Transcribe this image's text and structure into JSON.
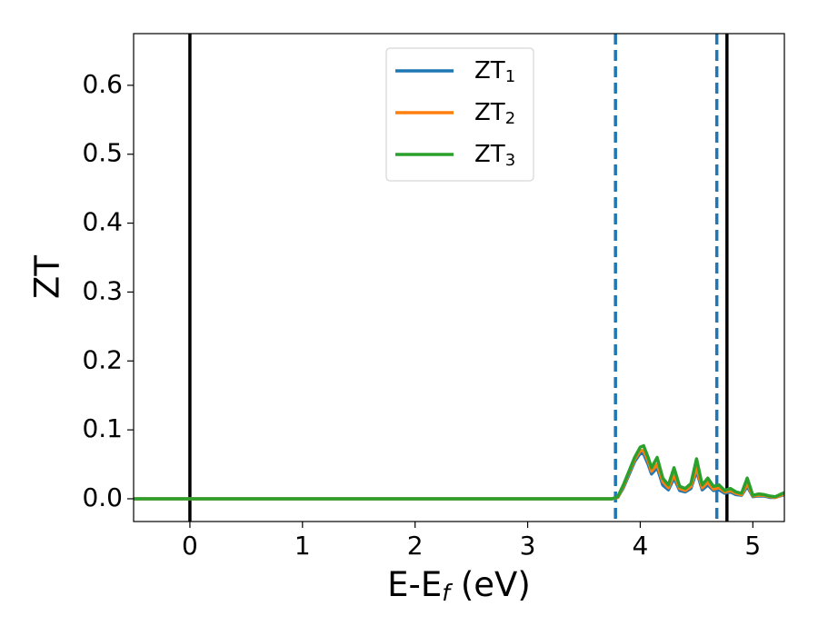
{
  "chart_data": {
    "type": "line",
    "ylabel": "ZT",
    "xlabel": [
      "E-E",
      "f",
      " (eV)"
    ],
    "xlim": [
      -0.5,
      5.28
    ],
    "ylim": [
      -0.033,
      0.675
    ],
    "xticks": [
      0,
      1,
      2,
      3,
      4,
      5
    ],
    "yticks": [
      {
        "value": 0,
        "label": "0.0"
      },
      0.1,
      0.2,
      0.3,
      0.4,
      0.5,
      0.6
    ],
    "legend": "upper center",
    "vlines": [
      {
        "x": 0,
        "color": "#000000",
        "style": "solid"
      },
      {
        "x": 4.77,
        "color": "#000000",
        "style": "solid"
      },
      {
        "x": 3.78,
        "color": "#1f77b4",
        "style": "dashed"
      },
      {
        "x": 4.68,
        "color": "#1f77b4",
        "style": "dashed"
      }
    ],
    "x": [
      -0.5,
      3.75,
      3.8,
      3.85,
      3.9,
      3.95,
      4.0,
      4.03,
      4.07,
      4.1,
      4.15,
      4.2,
      4.25,
      4.3,
      4.35,
      4.4,
      4.45,
      4.5,
      4.55,
      4.6,
      4.65,
      4.7,
      4.75,
      4.8,
      4.85,
      4.9,
      4.95,
      5.0,
      5.05,
      5.1,
      5.15,
      5.2,
      5.28
    ],
    "series": [
      {
        "name": [
          "ZT",
          "1"
        ],
        "color": "#1f77b4",
        "values": [
          0,
          0,
          0.002,
          0.016,
          0.035,
          0.054,
          0.066,
          0.065,
          0.05,
          0.036,
          0.045,
          0.02,
          0.013,
          0.03,
          0.012,
          0.01,
          0.015,
          0.04,
          0.013,
          0.02,
          0.012,
          0.013,
          0.008,
          0.01,
          0.006,
          0.005,
          0.018,
          0.003,
          0.004,
          0.004,
          0.002,
          0.002,
          0.006
        ]
      },
      {
        "name": [
          "ZT",
          "2"
        ],
        "color": "#ff7f0e",
        "values": [
          0,
          0,
          0.002,
          0.018,
          0.038,
          0.057,
          0.07,
          0.07,
          0.055,
          0.04,
          0.05,
          0.025,
          0.016,
          0.035,
          0.015,
          0.012,
          0.018,
          0.045,
          0.016,
          0.024,
          0.014,
          0.016,
          0.01,
          0.012,
          0.008,
          0.006,
          0.022,
          0.004,
          0.005,
          0.005,
          0.003,
          0.002,
          0.007
        ]
      },
      {
        "name": [
          "ZT",
          "3"
        ],
        "color": "#2ca02c",
        "values": [
          0,
          0,
          0.003,
          0.02,
          0.04,
          0.06,
          0.075,
          0.077,
          0.06,
          0.045,
          0.06,
          0.03,
          0.02,
          0.045,
          0.018,
          0.015,
          0.022,
          0.058,
          0.02,
          0.03,
          0.018,
          0.02,
          0.012,
          0.015,
          0.01,
          0.008,
          0.03,
          0.005,
          0.007,
          0.006,
          0.004,
          0.003,
          0.009
        ]
      }
    ]
  }
}
